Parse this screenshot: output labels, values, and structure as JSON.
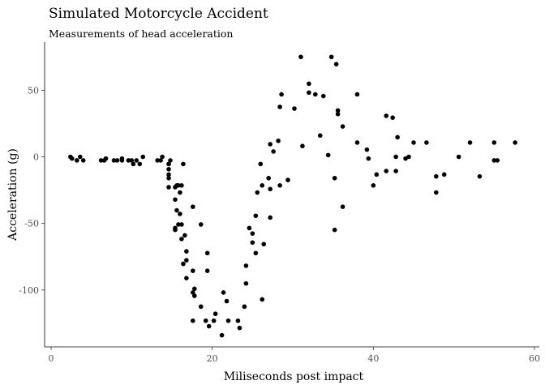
{
  "chart_data": {
    "type": "scatter",
    "title": "Simulated Motorcycle Accident",
    "subtitle": "Measurements of head acceleration",
    "xlabel": "Miliseconds post impact",
    "ylabel": "Acceleration (g)",
    "xlim": [
      0,
      60
    ],
    "ylim": [
      -140,
      85
    ],
    "x_ticks": [
      0,
      20,
      40,
      60
    ],
    "y_ticks": [
      -100,
      -50,
      0,
      50
    ],
    "grid": false,
    "point_color": "#000000",
    "points": [
      {
        "x": 2.4,
        "y": 0.0
      },
      {
        "x": 2.6,
        "y": -1.3
      },
      {
        "x": 3.2,
        "y": -2.7
      },
      {
        "x": 3.6,
        "y": 0.0
      },
      {
        "x": 4.0,
        "y": -2.7
      },
      {
        "x": 6.2,
        "y": -2.7
      },
      {
        "x": 6.6,
        "y": -2.7
      },
      {
        "x": 6.8,
        "y": -1.3
      },
      {
        "x": 7.8,
        "y": -2.7
      },
      {
        "x": 8.2,
        "y": -2.7
      },
      {
        "x": 8.8,
        "y": -1.3
      },
      {
        "x": 8.8,
        "y": -2.7
      },
      {
        "x": 9.6,
        "y": -2.7
      },
      {
        "x": 10.0,
        "y": -2.7
      },
      {
        "x": 10.2,
        "y": -5.4
      },
      {
        "x": 10.6,
        "y": -2.7
      },
      {
        "x": 11.0,
        "y": -5.4
      },
      {
        "x": 11.4,
        "y": 0.0
      },
      {
        "x": 13.2,
        "y": -2.7
      },
      {
        "x": 13.6,
        "y": -2.7
      },
      {
        "x": 13.8,
        "y": 0.0
      },
      {
        "x": 14.6,
        "y": -13.3
      },
      {
        "x": 14.6,
        "y": -5.4
      },
      {
        "x": 14.6,
        "y": -5.4
      },
      {
        "x": 14.6,
        "y": -9.3
      },
      {
        "x": 14.6,
        "y": -16.0
      },
      {
        "x": 14.6,
        "y": -22.8
      },
      {
        "x": 14.8,
        "y": -2.7
      },
      {
        "x": 15.4,
        "y": -22.8
      },
      {
        "x": 15.4,
        "y": -32.1
      },
      {
        "x": 15.4,
        "y": -53.5
      },
      {
        "x": 15.4,
        "y": -54.9
      },
      {
        "x": 15.6,
        "y": -40.2
      },
      {
        "x": 15.6,
        "y": -21.5
      },
      {
        "x": 15.8,
        "y": -21.5
      },
      {
        "x": 15.8,
        "y": -50.8
      },
      {
        "x": 16.0,
        "y": -42.9
      },
      {
        "x": 16.0,
        "y": -26.8
      },
      {
        "x": 16.2,
        "y": -21.5
      },
      {
        "x": 16.2,
        "y": -50.8
      },
      {
        "x": 16.2,
        "y": -61.7
      },
      {
        "x": 16.4,
        "y": -5.4
      },
      {
        "x": 16.4,
        "y": -80.4
      },
      {
        "x": 16.6,
        "y": -59.0
      },
      {
        "x": 16.8,
        "y": -71.0
      },
      {
        "x": 16.8,
        "y": -91.1
      },
      {
        "x": 16.8,
        "y": -77.7
      },
      {
        "x": 17.6,
        "y": -37.5
      },
      {
        "x": 17.6,
        "y": -85.6
      },
      {
        "x": 17.6,
        "y": -123.1
      },
      {
        "x": 17.6,
        "y": -101.9
      },
      {
        "x": 17.8,
        "y": -99.1
      },
      {
        "x": 17.8,
        "y": -104.4
      },
      {
        "x": 18.6,
        "y": -112.5
      },
      {
        "x": 18.6,
        "y": -50.8
      },
      {
        "x": 19.2,
        "y": -123.1
      },
      {
        "x": 19.4,
        "y": -85.6
      },
      {
        "x": 19.4,
        "y": -72.3
      },
      {
        "x": 19.6,
        "y": -127.2
      },
      {
        "x": 20.2,
        "y": -123.1
      },
      {
        "x": 20.4,
        "y": -117.9
      },
      {
        "x": 21.2,
        "y": -134.0
      },
      {
        "x": 21.4,
        "y": -101.9
      },
      {
        "x": 21.8,
        "y": -108.4
      },
      {
        "x": 22.0,
        "y": -123.1
      },
      {
        "x": 23.2,
        "y": -123.1
      },
      {
        "x": 23.4,
        "y": -128.5
      },
      {
        "x": 24.0,
        "y": -112.5
      },
      {
        "x": 24.2,
        "y": -95.1
      },
      {
        "x": 24.2,
        "y": -81.8
      },
      {
        "x": 24.6,
        "y": -53.5
      },
      {
        "x": 25.0,
        "y": -64.4
      },
      {
        "x": 25.0,
        "y": -57.6
      },
      {
        "x": 25.4,
        "y": -72.3
      },
      {
        "x": 25.4,
        "y": -44.3
      },
      {
        "x": 25.6,
        "y": -26.8
      },
      {
        "x": 26.0,
        "y": -5.4
      },
      {
        "x": 26.2,
        "y": -107.1
      },
      {
        "x": 26.2,
        "y": -21.5
      },
      {
        "x": 26.4,
        "y": -65.6
      },
      {
        "x": 27.0,
        "y": -16.0
      },
      {
        "x": 27.2,
        "y": -45.6
      },
      {
        "x": 27.2,
        "y": -24.2
      },
      {
        "x": 27.2,
        "y": 9.5
      },
      {
        "x": 27.6,
        "y": 4.0
      },
      {
        "x": 28.2,
        "y": 12.0
      },
      {
        "x": 28.4,
        "y": -21.5
      },
      {
        "x": 28.4,
        "y": 37.5
      },
      {
        "x": 28.6,
        "y": 46.9
      },
      {
        "x": 29.4,
        "y": -17.4
      },
      {
        "x": 30.2,
        "y": 36.2
      },
      {
        "x": 31.0,
        "y": 75.0
      },
      {
        "x": 31.2,
        "y": 8.1
      },
      {
        "x": 32.0,
        "y": 54.9
      },
      {
        "x": 32.0,
        "y": 48.2
      },
      {
        "x": 32.8,
        "y": 46.9
      },
      {
        "x": 33.4,
        "y": 16.0
      },
      {
        "x": 33.8,
        "y": 45.6
      },
      {
        "x": 34.4,
        "y": 1.3
      },
      {
        "x": 34.8,
        "y": 75.0
      },
      {
        "x": 35.2,
        "y": -16.0
      },
      {
        "x": 35.2,
        "y": -54.9
      },
      {
        "x": 35.4,
        "y": 69.6
      },
      {
        "x": 35.6,
        "y": 34.8
      },
      {
        "x": 35.6,
        "y": 32.1
      },
      {
        "x": 36.2,
        "y": -37.5
      },
      {
        "x": 36.2,
        "y": 22.8
      },
      {
        "x": 38.0,
        "y": 46.9
      },
      {
        "x": 38.0,
        "y": 10.7
      },
      {
        "x": 39.2,
        "y": 5.4
      },
      {
        "x": 39.4,
        "y": -1.3
      },
      {
        "x": 40.0,
        "y": -21.5
      },
      {
        "x": 40.4,
        "y": -13.3
      },
      {
        "x": 41.6,
        "y": 30.8
      },
      {
        "x": 41.6,
        "y": -10.7
      },
      {
        "x": 42.4,
        "y": 29.4
      },
      {
        "x": 42.8,
        "y": 0.0
      },
      {
        "x": 42.8,
        "y": -10.7
      },
      {
        "x": 43.0,
        "y": 14.7
      },
      {
        "x": 44.0,
        "y": -1.3
      },
      {
        "x": 44.4,
        "y": 0.0
      },
      {
        "x": 45.0,
        "y": 10.7
      },
      {
        "x": 46.6,
        "y": 10.7
      },
      {
        "x": 47.8,
        "y": -26.8
      },
      {
        "x": 47.8,
        "y": -14.7
      },
      {
        "x": 48.8,
        "y": -13.3
      },
      {
        "x": 50.6,
        "y": 0.0
      },
      {
        "x": 52.0,
        "y": 10.7
      },
      {
        "x": 53.2,
        "y": -14.7
      },
      {
        "x": 55.0,
        "y": -2.7
      },
      {
        "x": 55.0,
        "y": 10.7
      },
      {
        "x": 55.4,
        "y": -2.7
      },
      {
        "x": 57.6,
        "y": 10.7
      }
    ]
  }
}
